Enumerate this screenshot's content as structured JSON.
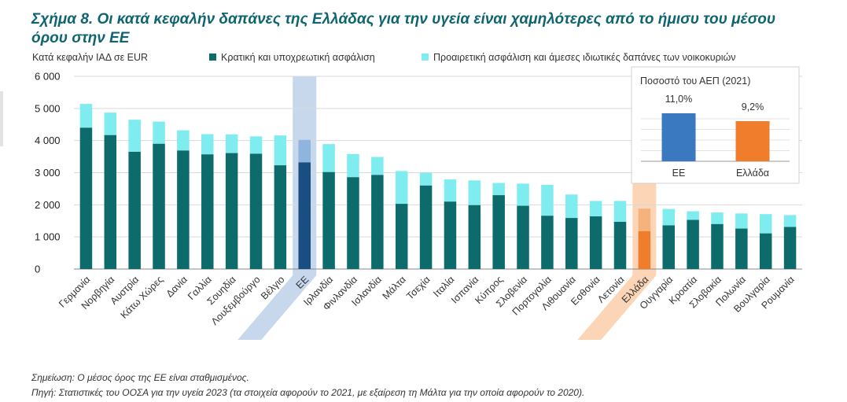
{
  "title": "Σχήμα 8. Οι κατά κεφαλήν δαπάνες της Ελλάδας για την υγεία είναι χαμηλότερες από το ήμισυ του μέσου όρου στην ΕΕ",
  "notes": {
    "note": "Σημείωση: Ο μέσος όρος της ΕΕ είναι σταθμισμένος.",
    "source": "Πηγή: Στατιστικές του ΟΟΣΑ για την υγεία 2023 (τα στοιχεία αφορούν το 2021, με εξαίρεση τη Μάλτα για την οποία αφορούν το 2020)."
  },
  "chart_data": [
    {
      "type": "bar",
      "stacked": true,
      "ylabel": "Κατά κεφαλήν ΙΑΔ σε EUR",
      "ylim": [
        0,
        6000
      ],
      "yticks": [
        0,
        1000,
        2000,
        3000,
        4000,
        5000,
        6000
      ],
      "ytick_labels": [
        "0",
        "1 000",
        "2 000",
        "3 000",
        "4 000",
        "5 000",
        "6 000"
      ],
      "grid": true,
      "legend_position": "top",
      "categories": [
        "Γερμανία",
        "Νορβηγία",
        "Αυστρία",
        "Κάτω Χώρες",
        "Δανία",
        "Γαλλία",
        "Σουηδία",
        "Λουξεμβούργο",
        "Βέλγιο",
        "ΕΕ",
        "Ιρλανδία",
        "Φινλανδία",
        "Ισλανδία",
        "Μάλτα",
        "Τσεχία",
        "Ιταλία",
        "Ισπανία",
        "Κύπρος",
        "Σλοβενία",
        "Πορτογαλία",
        "Λιθουανία",
        "Εσθονία",
        "Λετονία",
        "Ελλάδα",
        "Ουγγαρία",
        "Κροατία",
        "Σλοβακία",
        "Πολωνία",
        "Βουλγαρία",
        "Ρουμανία"
      ],
      "highlighted_categories": [
        "ΕΕ",
        "Ελλάδα"
      ],
      "series": [
        {
          "name": "Κρατική και υποχρεωτική ασφάλιση",
          "color": "#0e6b6b",
          "values": [
            4400,
            4170,
            3650,
            3900,
            3690,
            3570,
            3610,
            3590,
            3230,
            3320,
            3020,
            2860,
            2930,
            2030,
            2600,
            2100,
            1990,
            2300,
            1970,
            1660,
            1590,
            1640,
            1470,
            1180,
            1360,
            1530,
            1400,
            1260,
            1110,
            1310
          ]
        },
        {
          "name": "Προαιρετική ασφάλιση και άμεσες ιδιωτικές δαπάνες των νοικοκυριών",
          "color": "#7fecef",
          "values": [
            740,
            700,
            1000,
            690,
            630,
            630,
            580,
            540,
            930,
            700,
            870,
            720,
            560,
            1020,
            400,
            690,
            770,
            380,
            690,
            960,
            730,
            480,
            650,
            700,
            510,
            270,
            360,
            470,
            600,
            370
          ]
        }
      ],
      "highlight_colors": {
        "ΕΕ": [
          "#1a4d80",
          "#8fb4dd"
        ],
        "Ελλάδα": [
          "#f07d2b",
          "#f6b27d"
        ]
      }
    },
    {
      "type": "bar",
      "title": "Ποσοστό του ΑΕΠ (2021)",
      "categories": [
        "ΕΕ",
        "Ελλάδα"
      ],
      "values": [
        11.0,
        9.2
      ],
      "value_labels": [
        "11,0%",
        "9,2%"
      ],
      "colors": [
        "#3a78c0",
        "#f07d2b"
      ],
      "grid": true
    }
  ]
}
